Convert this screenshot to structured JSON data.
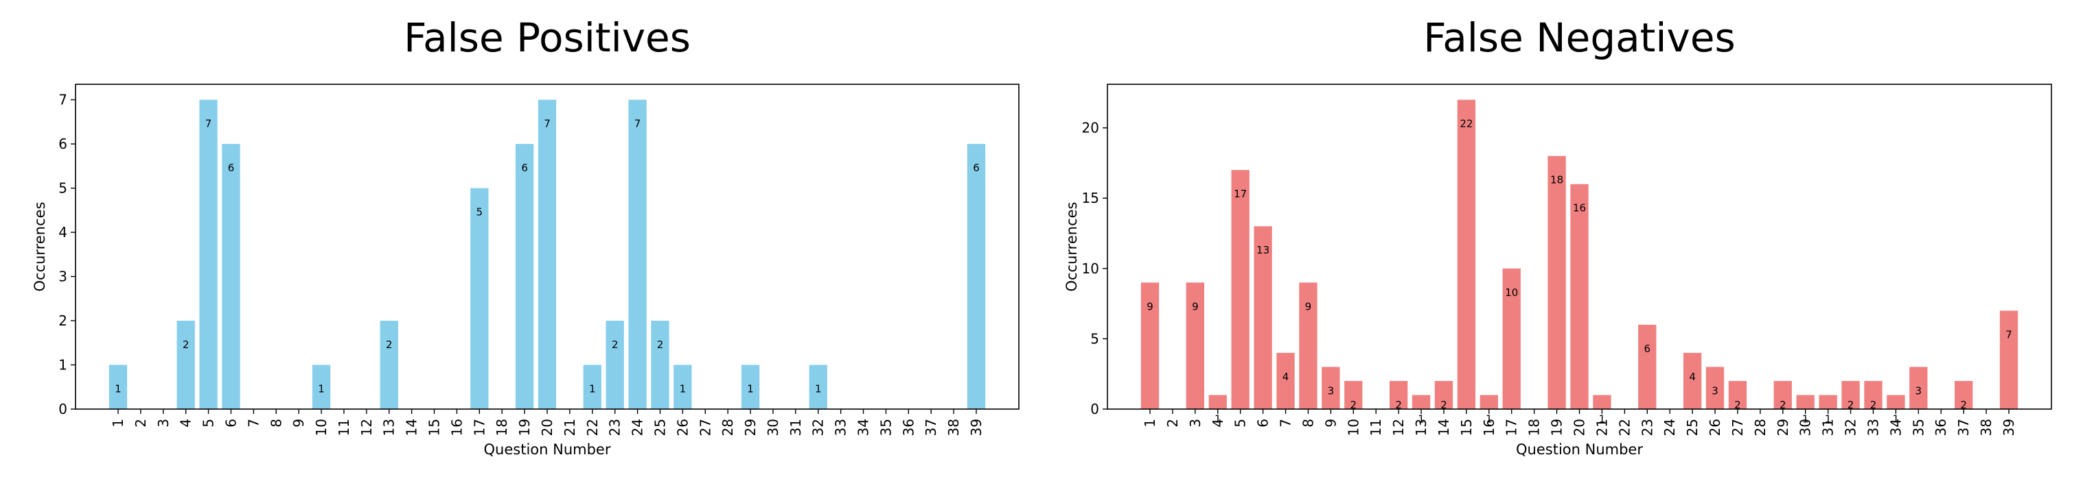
{
  "chart_data": [
    {
      "type": "bar",
      "title": "False Positives",
      "xlabel": "Question Number",
      "ylabel": "Occurrences",
      "color": "#87ceeb",
      "ylim": [
        0,
        7.35
      ],
      "yticks": [
        0,
        1,
        2,
        3,
        4,
        5,
        6,
        7
      ],
      "categories": [
        "1",
        "2",
        "3",
        "4",
        "5",
        "6",
        "7",
        "8",
        "9",
        "10",
        "11",
        "12",
        "13",
        "14",
        "15",
        "16",
        "17",
        "18",
        "19",
        "20",
        "21",
        "22",
        "23",
        "24",
        "25",
        "26",
        "27",
        "28",
        "29",
        "30",
        "31",
        "32",
        "33",
        "34",
        "35",
        "36",
        "37",
        "38",
        "39"
      ],
      "values": [
        1,
        0,
        0,
        2,
        7,
        6,
        0,
        0,
        0,
        1,
        0,
        0,
        2,
        0,
        0,
        0,
        5,
        0,
        6,
        7,
        0,
        1,
        2,
        7,
        2,
        1,
        0,
        0,
        1,
        0,
        0,
        1,
        0,
        0,
        0,
        0,
        0,
        0,
        6
      ],
      "grid": false
    },
    {
      "type": "bar",
      "title": "False Negatives",
      "xlabel": "Question Number",
      "ylabel": "Occurrences",
      "color": "#f08080",
      "ylim": [
        0,
        23.1
      ],
      "yticks": [
        0,
        5,
        10,
        15,
        20
      ],
      "categories": [
        "1",
        "2",
        "3",
        "4",
        "5",
        "6",
        "7",
        "8",
        "9",
        "10",
        "11",
        "12",
        "13",
        "14",
        "15",
        "16",
        "17",
        "18",
        "19",
        "20",
        "21",
        "22",
        "23",
        "24",
        "25",
        "26",
        "27",
        "28",
        "29",
        "30",
        "31",
        "32",
        "33",
        "34",
        "35",
        "36",
        "37",
        "38",
        "39"
      ],
      "values": [
        9,
        0,
        9,
        1,
        17,
        13,
        4,
        9,
        3,
        2,
        0,
        2,
        1,
        2,
        22,
        1,
        10,
        0,
        18,
        16,
        1,
        0,
        6,
        0,
        4,
        3,
        2,
        0,
        2,
        1,
        1,
        2,
        2,
        1,
        3,
        0,
        2,
        0,
        7
      ],
      "grid": false
    }
  ]
}
